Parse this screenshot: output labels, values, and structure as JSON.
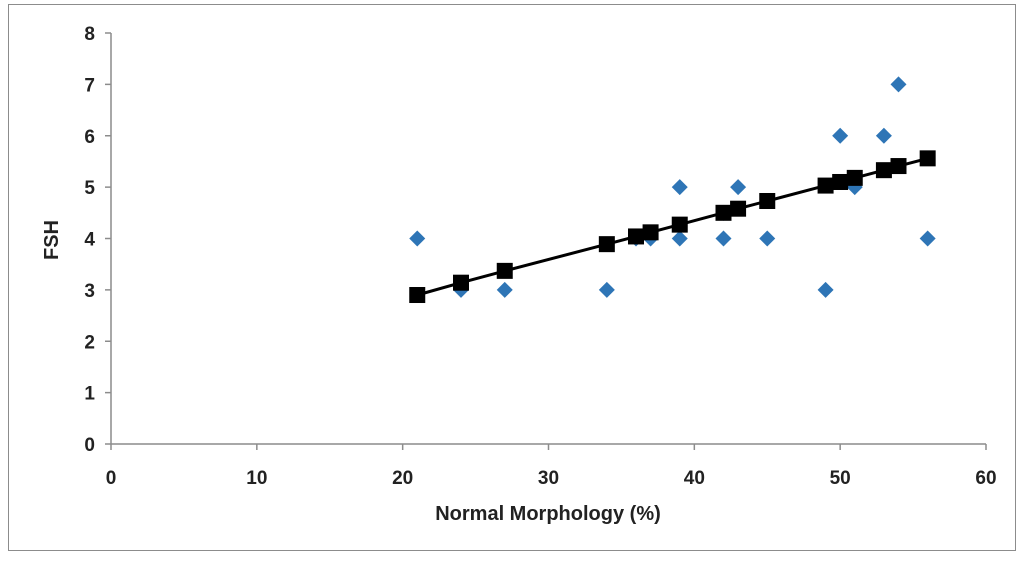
{
  "chart_data": {
    "type": "scatter",
    "xlabel": "Normal Morphology (%)",
    "ylabel": "FSH",
    "xlim": [
      0,
      60
    ],
    "ylim": [
      0,
      8
    ],
    "x_ticks": [
      0,
      10,
      20,
      30,
      40,
      50,
      60
    ],
    "y_ticks": [
      0,
      1,
      2,
      3,
      4,
      5,
      6,
      7,
      8
    ],
    "grid": false,
    "series": [
      {
        "marker": "diamond",
        "color": "#2e75b6",
        "points": [
          [
            21,
            4
          ],
          [
            24,
            3
          ],
          [
            27,
            3
          ],
          [
            34,
            3
          ],
          [
            36,
            4
          ],
          [
            37,
            4
          ],
          [
            39,
            5
          ],
          [
            39,
            4
          ],
          [
            42,
            4.5
          ],
          [
            42,
            4
          ],
          [
            43,
            5
          ],
          [
            45,
            4
          ],
          [
            49,
            3
          ],
          [
            50,
            6
          ],
          [
            51,
            5
          ],
          [
            53,
            6
          ],
          [
            54,
            7
          ],
          [
            56,
            4
          ]
        ]
      },
      {
        "marker": "square",
        "color": "#000000",
        "line": true,
        "points": [
          [
            21,
            2.9
          ],
          [
            24,
            3.14
          ],
          [
            27,
            3.37
          ],
          [
            34,
            3.89
          ],
          [
            36,
            4.04
          ],
          [
            37,
            4.12
          ],
          [
            39,
            4.27
          ],
          [
            42,
            4.5
          ],
          [
            43,
            4.58
          ],
          [
            45,
            4.73
          ],
          [
            49,
            5.03
          ],
          [
            50,
            5.1
          ],
          [
            51,
            5.18
          ],
          [
            53,
            5.33
          ],
          [
            54,
            5.41
          ],
          [
            56,
            5.56
          ]
        ]
      }
    ]
  }
}
